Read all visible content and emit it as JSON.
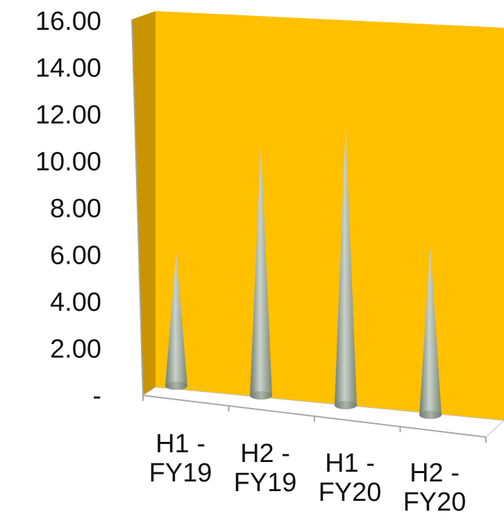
{
  "chart_data": {
    "type": "bar",
    "bar_shape": "cone",
    "categories": [
      "H1 - FY19",
      "H2 - FY19",
      "H1 - FY20",
      "H2 - FY20"
    ],
    "category_lines": [
      [
        "H1 -",
        "FY19"
      ],
      [
        "H2 -",
        "FY19"
      ],
      [
        "H1 -",
        "FY20"
      ],
      [
        "H2 -",
        "FY20"
      ]
    ],
    "values": [
      6.2,
      11.7,
      13.1,
      7.9
    ],
    "ylim": [
      0,
      16
    ],
    "yticks": [
      0,
      2,
      4,
      6,
      8,
      10,
      12,
      14,
      16
    ],
    "ytick_labels": [
      "-",
      "2.00",
      "4.00",
      "6.00",
      "8.00",
      "10.00",
      "12.00",
      "14.00",
      "16.00"
    ],
    "title": "",
    "xlabel": "",
    "ylabel": "",
    "legend": "none",
    "colors": {
      "back_wall": "#FFC000",
      "side_wall": "#C89400",
      "floor": "#FFFFFF",
      "cone_fill": "#8E9B8E",
      "axis_line": "#A6A6A6"
    }
  }
}
